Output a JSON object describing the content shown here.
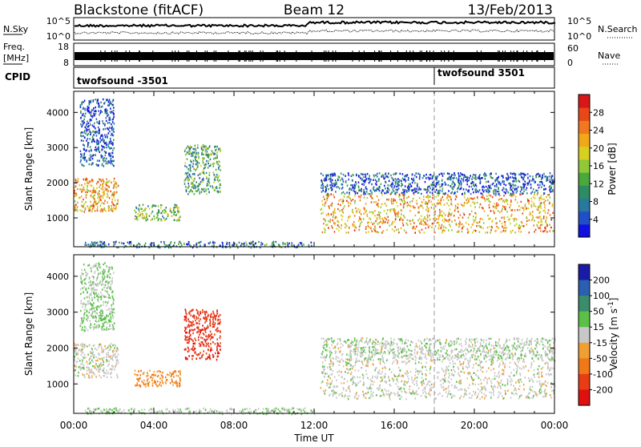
{
  "header": {
    "station": "Blackstone (fitACF)",
    "beam": "Beam 12",
    "date": "13/Feb/2013"
  },
  "noise_panel": {
    "left_label": "N.Sky",
    "ticks_top": "10^5",
    "ticks_bottom": "10^0",
    "right_label": "N.Search",
    "right_ticks_top": "10^5",
    "right_ticks_bottom": "10^0"
  },
  "freq_panel": {
    "label_line1": "Freq.",
    "label_line2": "[MHz]",
    "tick_top": "18",
    "tick_bottom": "8",
    "right_label": "Nave",
    "right_tick_top": "60",
    "right_tick_bottom": "0"
  },
  "cpid_panel": {
    "label": "CPID",
    "programs": [
      {
        "name": "twofsound -3501",
        "start_hour": 0
      },
      {
        "name": "twofsound 3501",
        "start_hour": 18
      }
    ]
  },
  "chart_data": [
    {
      "type": "heatmap",
      "title": "",
      "xlabel": "",
      "ylabel": "Slant Range [km]",
      "xlim": [
        0,
        24
      ],
      "ylim": [
        180,
        4600
      ],
      "y_ticks": [
        "1000",
        "2000",
        "3000",
        "4000"
      ],
      "colorbar": {
        "label": "Power [dB]",
        "ticks": [
          "4",
          "8",
          "12",
          "16",
          "20",
          "24",
          "28"
        ],
        "colors": [
          "#1010e0",
          "#2050c8",
          "#2878a0",
          "#2e8c64",
          "#4aa83c",
          "#90c838",
          "#d8d020",
          "#f0a818",
          "#f07820",
          "#e84818",
          "#d81818"
        ]
      },
      "echo_regions": [
        {
          "t0": 0.0,
          "t1": 2.2,
          "r0": 1200,
          "r1": 2150,
          "level": 22
        },
        {
          "t0": 0.3,
          "t1": 2.0,
          "r0": 2500,
          "r1": 4400,
          "level": 5
        },
        {
          "t0": 3.0,
          "t1": 5.3,
          "r0": 950,
          "r1": 1400,
          "level": 14
        },
        {
          "t0": 5.5,
          "t1": 7.3,
          "r0": 1700,
          "r1": 3100,
          "level": 12
        },
        {
          "t0": 0.5,
          "t1": 12.0,
          "r0": 180,
          "r1": 350,
          "level": 8
        },
        {
          "t0": 12.3,
          "t1": 24.0,
          "r0": 600,
          "r1": 1700,
          "level": 22
        },
        {
          "t0": 12.3,
          "t1": 24.0,
          "r0": 1700,
          "r1": 2300,
          "level": 6
        }
      ]
    },
    {
      "type": "heatmap",
      "title": "",
      "xlabel": "Time UT",
      "ylabel": "Slant Range [km]",
      "xlim": [
        0,
        24
      ],
      "ylim": [
        180,
        4600
      ],
      "x_ticks": [
        "00:00",
        "04:00",
        "08:00",
        "12:00",
        "16:00",
        "20:00",
        "00:00"
      ],
      "y_ticks": [
        "1000",
        "2000",
        "3000",
        "4000"
      ],
      "colorbar": {
        "label": "Velocity [m s^-1]",
        "ticks": [
          "200",
          "100",
          "50",
          "15",
          "-15",
          "-50",
          "-100",
          "-200"
        ],
        "colors": [
          "#1a1aa8",
          "#2a60b0",
          "#3a8c6a",
          "#5ac048",
          "#c8c8c8",
          "#f0a030",
          "#f07818",
          "#e83c14",
          "#e01010"
        ]
      },
      "echo_regions": [
        {
          "t0": 0.0,
          "t1": 2.2,
          "r0": 1200,
          "r1": 2150,
          "level": 0
        },
        {
          "t0": 0.3,
          "t1": 2.0,
          "r0": 2500,
          "r1": 4400,
          "level": 30
        },
        {
          "t0": 3.0,
          "t1": 5.3,
          "r0": 950,
          "r1": 1400,
          "level": -90
        },
        {
          "t0": 5.5,
          "t1": 7.3,
          "r0": 1700,
          "r1": 3100,
          "level": -180
        },
        {
          "t0": 0.5,
          "t1": 12.0,
          "r0": 180,
          "r1": 350,
          "level": 20
        },
        {
          "t0": 12.3,
          "t1": 24.0,
          "r0": 600,
          "r1": 1700,
          "level": 0
        },
        {
          "t0": 12.3,
          "t1": 24.0,
          "r0": 1700,
          "r1": 2300,
          "level": 10
        }
      ]
    }
  ]
}
